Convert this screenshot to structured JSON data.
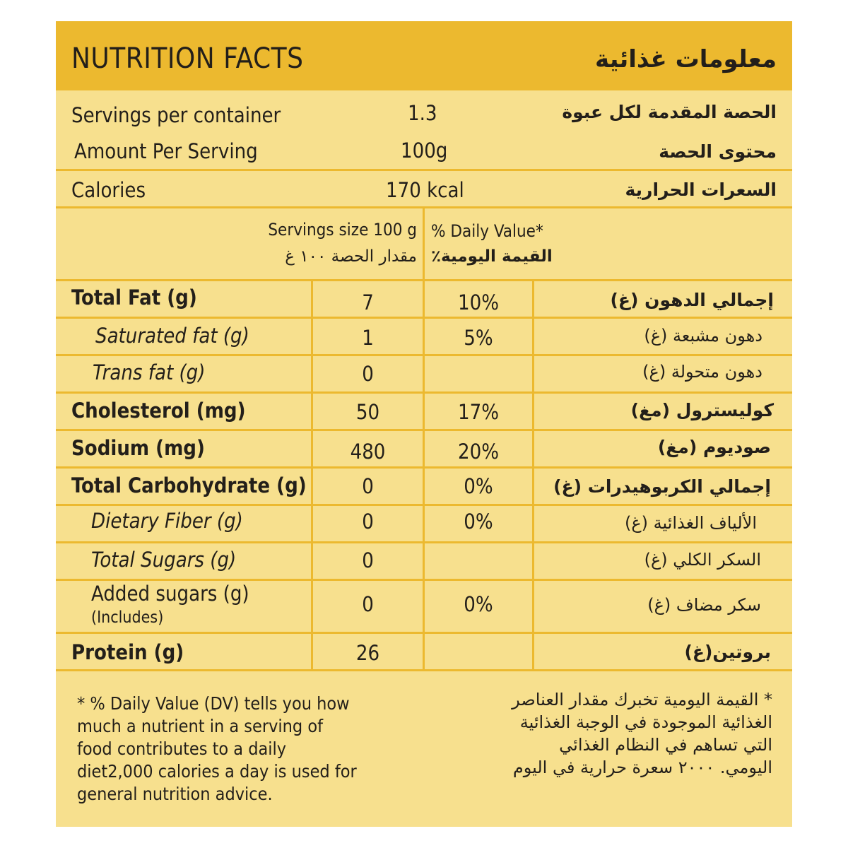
{
  "header": {
    "title_en": "NUTRITION FACTS",
    "title_ar": "معلومات غذائية"
  },
  "servings_per_container": {
    "label_en": "Servings per container",
    "value": "1.3",
    "label_ar": "الحصة المقدمة لكل عبوة"
  },
  "amount_per_serving": {
    "label_en": "Amount Per Serving",
    "value": "100g",
    "label_ar": "محتوى الحصة"
  },
  "calories": {
    "label_en": "Calories",
    "value": "170 kcal",
    "label_ar": "السعرات الحرارية"
  },
  "table_header": {
    "serving_size_en": "Servings size 100 g",
    "serving_size_ar": "مقدار الحصة ١٠٠ غ",
    "daily_value_en": "% Daily Value*",
    "daily_value_ar": "القيمة اليومية٪"
  },
  "nutrients": [
    {
      "en": "Total Fat (g)",
      "amount": "7",
      "dv": "10%",
      "ar": "إجمالي الدهون (غ)"
    },
    {
      "en": "Saturated fat (g)",
      "amount": "1",
      "dv": "5%",
      "ar": "دهون مشبعة (غ)"
    },
    {
      "en": "Trans fat (g)",
      "amount": "0",
      "dv": "",
      "ar": "دهون متحولة (غ)"
    },
    {
      "en": "Cholesterol (mg)",
      "amount": "50",
      "dv": "17%",
      "ar": "كوليسترول (مغ)"
    },
    {
      "en": "Sodium (mg)",
      "amount": "480",
      "dv": "20%",
      "ar": "صوديوم (مغ)"
    },
    {
      "en": "Total Carbohydrate (g)",
      "amount": "0",
      "dv": "0%",
      "ar": "إجمالي الكربوهيدرات (غ)"
    },
    {
      "en": "Dietary Fiber (g)",
      "amount": "0",
      "dv": "0%",
      "ar": "الألياف الغذائية (غ)"
    },
    {
      "en": "Total Sugars (g)",
      "amount": "0",
      "dv": "",
      "ar": "السكر الكلي (غ)"
    },
    {
      "en": "Added sugars (g)",
      "en_sub": "(Includes)",
      "amount": "0",
      "dv": "0%",
      "ar": "سكر مضاف (غ)"
    },
    {
      "en": "Protein (g)",
      "amount": "26",
      "dv": "",
      "ar": "بروتين(غ)"
    }
  ],
  "footnote": {
    "en": "* % Daily Value (DV) tells you how much a nutrient in a serving of food contributes to a daily diet2,000 calories a day is used for general nutrition advice.",
    "ar": "* القيمة اليومية تخبرك مقدار العناصر الغذائية الموجودة في الوجبة الغذائية التي تساهم في النظام الغذائي اليومي. ٢٠٠٠ سعرة حرارية في اليوم"
  },
  "colors": {
    "header_bg": "#ecb92f",
    "panel_bg": "#f7e08e",
    "text": "#231f1a"
  }
}
